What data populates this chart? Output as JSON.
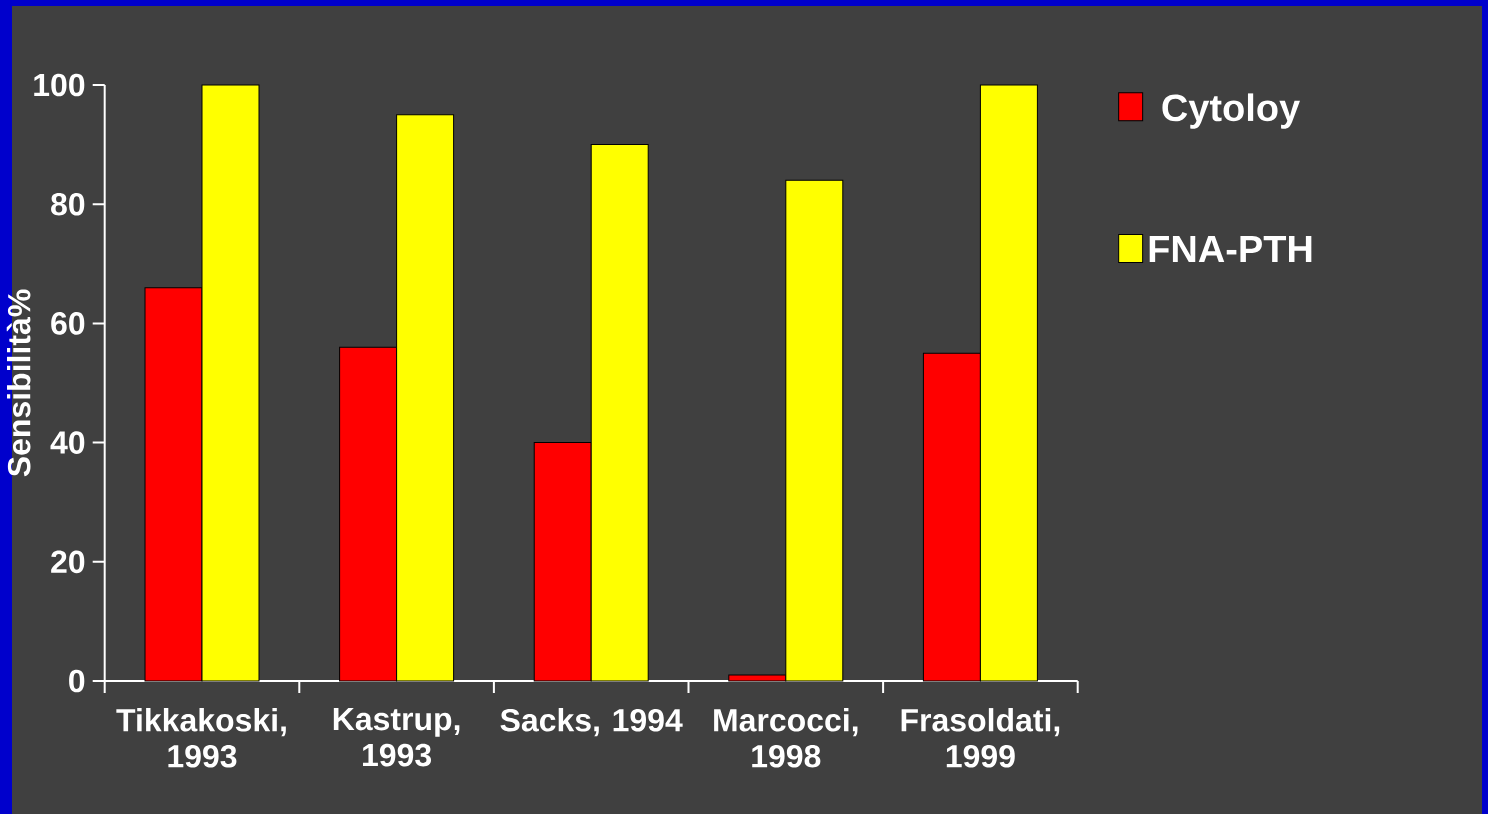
{
  "chart_data": {
    "type": "bar",
    "ylabel": "Sensibilità%",
    "categories": [
      "Tikkakoski, 1993",
      "Kastrup, 1993",
      "Sacks, 1994",
      "Marcocci, 1998",
      "Frasoldati, 1999"
    ],
    "series": [
      {
        "name": "Cytoloy",
        "color": "#ff0000",
        "values": [
          66,
          56,
          40,
          1,
          55
        ]
      },
      {
        "name": "FNA-PTH",
        "color": "#ffff00",
        "values": [
          100,
          95,
          90,
          84,
          100
        ]
      }
    ],
    "ylim": [
      0,
      100
    ],
    "yticks": [
      0,
      20,
      40,
      60,
      80,
      100
    ],
    "legend": "top right"
  }
}
